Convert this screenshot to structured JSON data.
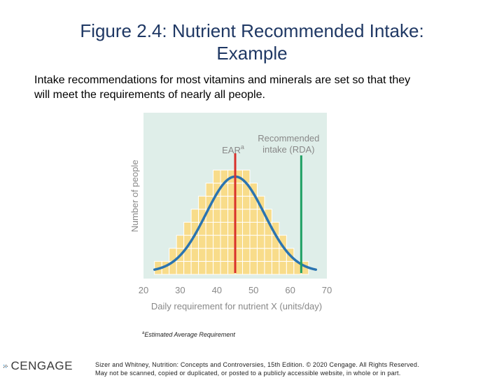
{
  "slide": {
    "title_line1": "Figure 2.4: Nutrient Recommended Intake:",
    "title_line2": "Example",
    "subtitle_line1": "Intake recommendations for most vitamins and minerals are set so that they",
    "subtitle_line2": "will meet the requirements of nearly all people.",
    "footnote_marker": "a",
    "footnote_text": "Estimated Average Requirement",
    "logo_text": "CENGAGE",
    "credit_line1": "Sizer and Whitney, Nutrition: Concepts and Controversies, 15th Edition. © 2020 Cengage. All Rights Reserved.",
    "credit_line2": "May not be scanned, copied or duplicated, or posted to a publicly accessible website, in whole or in part."
  },
  "chart_data": {
    "type": "bar",
    "xlabel": "Daily requirement for nutrient X (units/day)",
    "ylabel": "Number of people",
    "xlim": [
      20,
      70
    ],
    "ylim": [
      0,
      10
    ],
    "xticks": [
      20,
      30,
      40,
      50,
      60,
      70
    ],
    "bin_width": 2,
    "bins_x": [
      24,
      26,
      28,
      30,
      32,
      34,
      36,
      38,
      40,
      42,
      44,
      46,
      48,
      50,
      52,
      54,
      56,
      58,
      60,
      62,
      64
    ],
    "bins_count": [
      1,
      1,
      2,
      3,
      4,
      5,
      6,
      7,
      8,
      8,
      8,
      8,
      8,
      7,
      6,
      5,
      4,
      3,
      2,
      1,
      1
    ],
    "curve": {
      "mean": 45,
      "sd": 8,
      "peak": 7.5,
      "baseline": 0.2,
      "x_range": [
        23,
        67
      ]
    },
    "markers": [
      {
        "name": "EAR",
        "label": "EAR",
        "superscript": "a",
        "x": 45,
        "color": "#d9302b"
      },
      {
        "name": "RDA",
        "label_line1": "Recommended",
        "label_line2": "intake (RDA)",
        "x": 63,
        "color": "#1fa063"
      }
    ],
    "colors": {
      "panel": "#dfeee9",
      "bar_fill": "#f8dc8a",
      "bar_stroke": "#ffffff",
      "curve": "#2b74b0",
      "text": "#888888"
    },
    "grid": false
  }
}
